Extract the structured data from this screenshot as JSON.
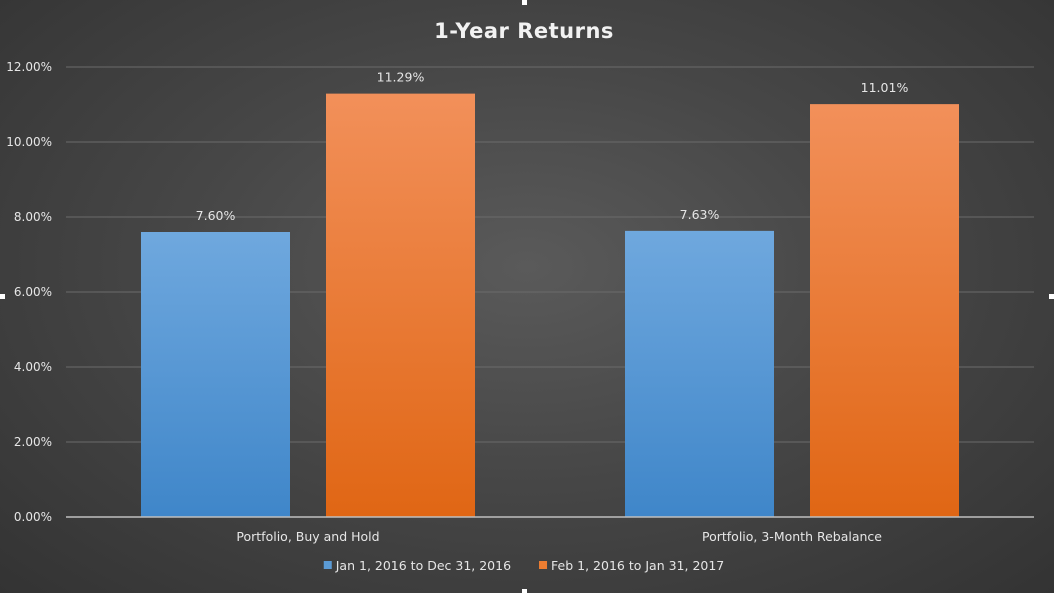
{
  "chart_data": {
    "type": "bar",
    "title": "1-Year Returns",
    "categories": [
      "Portfolio, Buy and Hold",
      "Portfolio, 3-Month Rebalance"
    ],
    "series": [
      {
        "name": "Jan 1, 2016 to Dec 31, 2016",
        "values": [
          7.6,
          7.63
        ],
        "labels": [
          "7.60%",
          "7.63%"
        ],
        "color": "#5b9bd5"
      },
      {
        "name": "Feb 1, 2016 to Jan 31, 2017",
        "values": [
          11.29,
          11.01
        ],
        "labels": [
          "11.29%",
          "11.01%"
        ],
        "color": "#ed7d31"
      }
    ],
    "ylim": [
      0,
      12
    ],
    "yticks": [
      0,
      2,
      4,
      6,
      8,
      10,
      12
    ],
    "ytick_labels": [
      "0.00%",
      "2.00%",
      "4.00%",
      "6.00%",
      "8.00%",
      "10.00%",
      "12.00%"
    ],
    "xlabel": "",
    "ylabel": "",
    "grid": true,
    "legend_position": "bottom"
  }
}
